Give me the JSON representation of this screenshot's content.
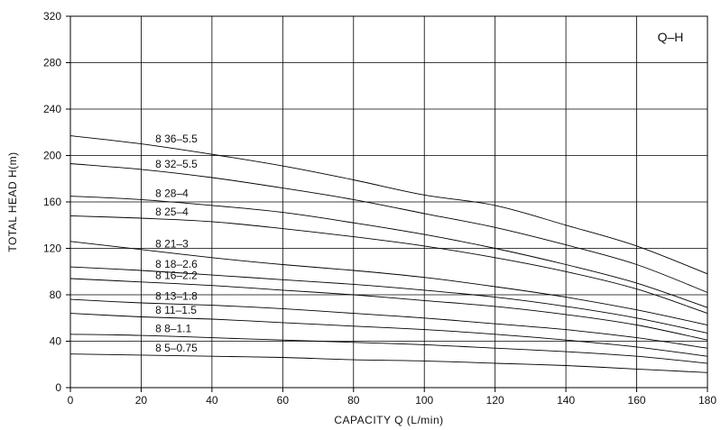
{
  "chart_data": {
    "type": "line",
    "badge": "Q–H",
    "xlabel": "CAPACITY  Q (L/min)",
    "ylabel": "TOTAL HEAD  H(m)",
    "xlim": [
      0,
      180
    ],
    "ylim": [
      0,
      320
    ],
    "xticks": [
      "0",
      "20",
      "40",
      "60",
      "80",
      "100",
      "120",
      "140",
      "160",
      "180"
    ],
    "yticks": [
      "0",
      "40",
      "80",
      "120",
      "160",
      "200",
      "240",
      "280",
      "320"
    ],
    "grid": true,
    "x": [
      0,
      20,
      40,
      60,
      80,
      100,
      120,
      140,
      160,
      180
    ],
    "series": [
      {
        "name": "8 36–5.5",
        "values": [
          217,
          210,
          201,
          191,
          179,
          166,
          157,
          140,
          122,
          98
        ]
      },
      {
        "name": "8 32–5.5",
        "values": [
          193,
          188,
          181,
          172,
          162,
          150,
          138,
          123,
          106,
          82
        ]
      },
      {
        "name": "8 28–4",
        "values": [
          165,
          162,
          157,
          151,
          142,
          132,
          120,
          106,
          90,
          69
        ]
      },
      {
        "name": "8 25–4",
        "values": [
          148,
          146,
          143,
          137,
          130,
          122,
          112,
          100,
          85,
          64
        ]
      },
      {
        "name": "8 21–3",
        "values": [
          126,
          119,
          112,
          106,
          101,
          95,
          87,
          78,
          67,
          54
        ]
      },
      {
        "name": "8 18–2.6",
        "values": [
          104,
          101,
          97,
          93,
          89,
          84,
          78,
          70,
          60,
          47
        ]
      },
      {
        "name": "8 16–2.2",
        "values": [
          94,
          91,
          88,
          84,
          80,
          75,
          70,
          63,
          54,
          41
        ]
      },
      {
        "name": "8 13–1.8",
        "values": [
          76,
          73,
          71,
          68,
          64,
          60,
          55,
          50,
          43,
          34
        ]
      },
      {
        "name": "8 11–1.5",
        "values": [
          64,
          61,
          59,
          56,
          53,
          50,
          46,
          41,
          35,
          27
        ]
      },
      {
        "name": "8 8–1.1",
        "values": [
          46,
          45,
          43,
          41,
          39,
          37,
          34,
          31,
          27,
          21
        ]
      },
      {
        "name": "8 5–0.75",
        "values": [
          29,
          28,
          27,
          26,
          24,
          23,
          21,
          19,
          16,
          13
        ]
      }
    ]
  }
}
